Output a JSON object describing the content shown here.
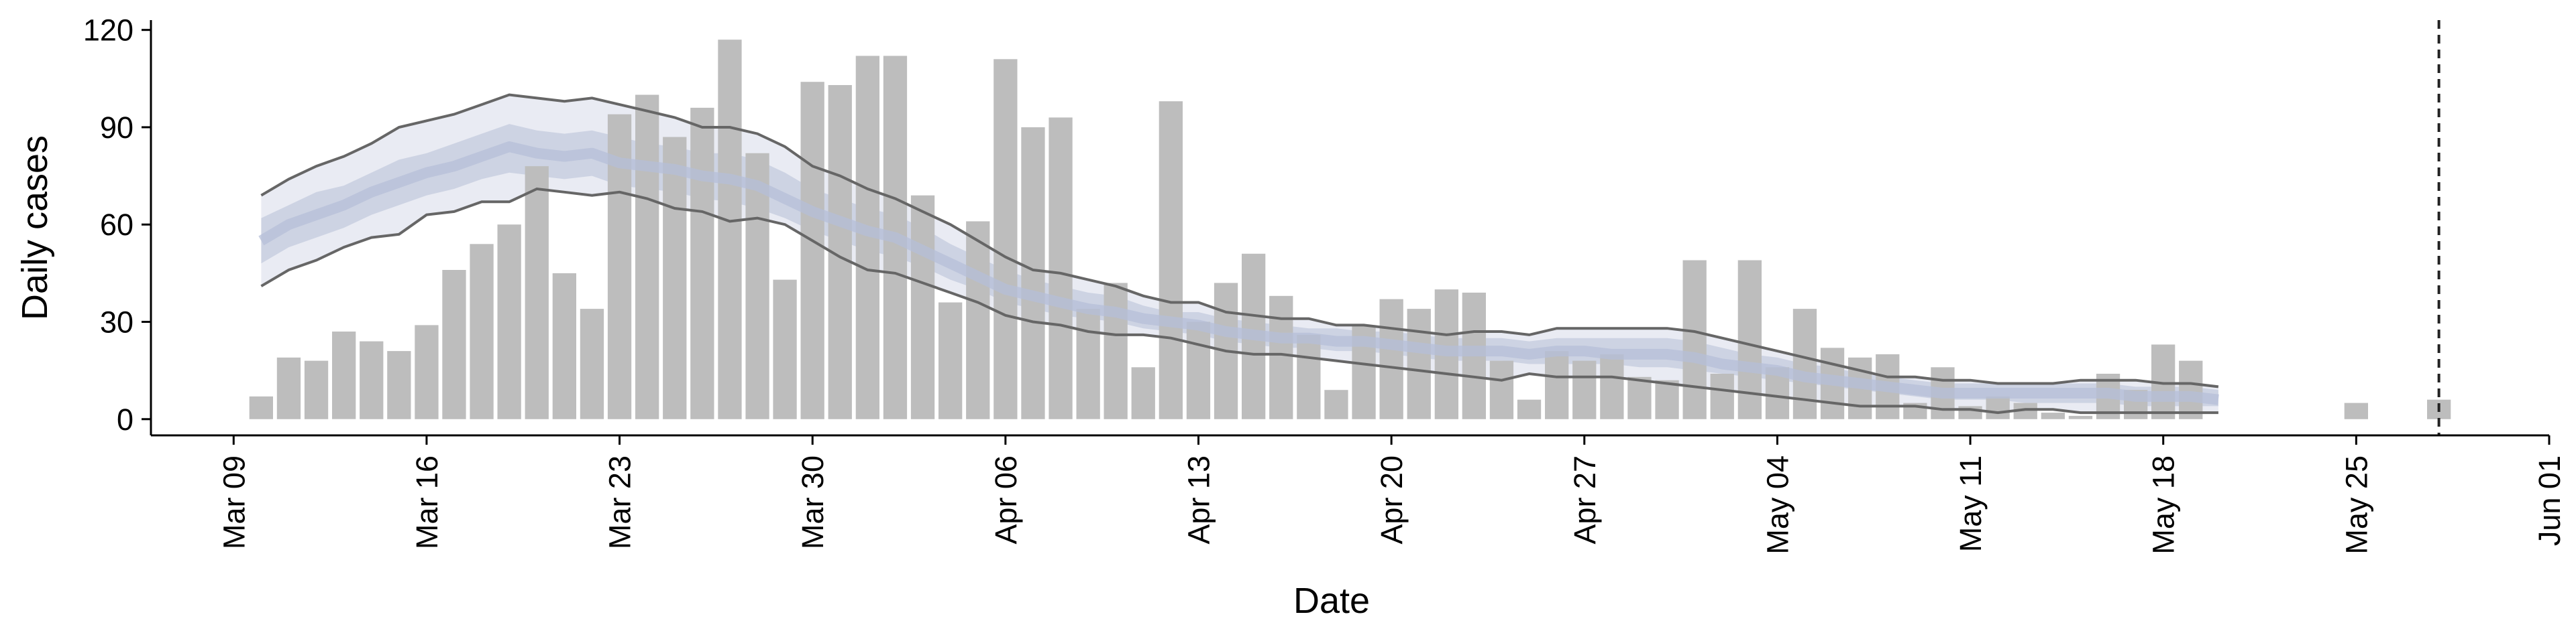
{
  "chart_data": {
    "type": "bar",
    "xlabel": "Date",
    "ylabel": "Daily cases",
    "ylim": [
      -5,
      122
    ],
    "yticks": [
      0,
      30,
      60,
      90,
      120
    ],
    "xlim": [
      "2020-03-06",
      "2020-06-01"
    ],
    "xticks": [
      {
        "date": "2020-03-09",
        "label": "Mar 09"
      },
      {
        "date": "2020-03-16",
        "label": "Mar 16"
      },
      {
        "date": "2020-03-23",
        "label": "Mar 23"
      },
      {
        "date": "2020-03-30",
        "label": "Mar 30"
      },
      {
        "date": "2020-04-06",
        "label": "Apr 06"
      },
      {
        "date": "2020-04-13",
        "label": "Apr 13"
      },
      {
        "date": "2020-04-20",
        "label": "Apr 20"
      },
      {
        "date": "2020-04-27",
        "label": "Apr 27"
      },
      {
        "date": "2020-05-04",
        "label": "May 04"
      },
      {
        "date": "2020-05-11",
        "label": "May 11"
      },
      {
        "date": "2020-05-18",
        "label": "May 18"
      },
      {
        "date": "2020-05-25",
        "label": "May 25"
      },
      {
        "date": "2020-06-01",
        "label": "Jun 01"
      }
    ],
    "grid": false,
    "legend": "none",
    "bars": {
      "dates": [
        "2020-03-10",
        "2020-03-11",
        "2020-03-12",
        "2020-03-13",
        "2020-03-14",
        "2020-03-15",
        "2020-03-16",
        "2020-03-17",
        "2020-03-18",
        "2020-03-19",
        "2020-03-20",
        "2020-03-21",
        "2020-03-22",
        "2020-03-23",
        "2020-03-24",
        "2020-03-25",
        "2020-03-26",
        "2020-03-27",
        "2020-03-28",
        "2020-03-29",
        "2020-03-30",
        "2020-03-31",
        "2020-04-01",
        "2020-04-02",
        "2020-04-03",
        "2020-04-04",
        "2020-04-05",
        "2020-04-06",
        "2020-04-07",
        "2020-04-08",
        "2020-04-09",
        "2020-04-10",
        "2020-04-11",
        "2020-04-12",
        "2020-04-13",
        "2020-04-14",
        "2020-04-15",
        "2020-04-16",
        "2020-04-17",
        "2020-04-18",
        "2020-04-19",
        "2020-04-20",
        "2020-04-21",
        "2020-04-22",
        "2020-04-23",
        "2020-04-24",
        "2020-04-25",
        "2020-04-26",
        "2020-04-27",
        "2020-04-28",
        "2020-04-29",
        "2020-04-30",
        "2020-05-01",
        "2020-05-02",
        "2020-05-03",
        "2020-05-04",
        "2020-05-05",
        "2020-05-06",
        "2020-05-07",
        "2020-05-08",
        "2020-05-09",
        "2020-05-10",
        "2020-05-11",
        "2020-05-12",
        "2020-05-13",
        "2020-05-14",
        "2020-05-15",
        "2020-05-16",
        "2020-05-17",
        "2020-05-18",
        "2020-05-19",
        "2020-05-20",
        "2020-05-21",
        "2020-05-22",
        "2020-05-23",
        "2020-05-24",
        "2020-05-25",
        "2020-05-26",
        "2020-05-27",
        "2020-05-28"
      ],
      "values": [
        7,
        19,
        18,
        27,
        24,
        21,
        29,
        46,
        54,
        60,
        78,
        45,
        34,
        94,
        100,
        87,
        96,
        117,
        82,
        43,
        104,
        103,
        112,
        112,
        69,
        36,
        61,
        111,
        90,
        93,
        34,
        42,
        16,
        98,
        30,
        42,
        51,
        38,
        26,
        9,
        29,
        37,
        34,
        40,
        39,
        18,
        6,
        21,
        18,
        20,
        13,
        12,
        49,
        14,
        49,
        16,
        34,
        22,
        19,
        20,
        5,
        16,
        4,
        7,
        5,
        2,
        1,
        14,
        9,
        23,
        18,
        0,
        0,
        0,
        0,
        0,
        5,
        0,
        0,
        6
      ],
      "color": "#bdbdbd"
    },
    "estimate": {
      "dates": [
        "2020-03-10",
        "2020-03-11",
        "2020-03-12",
        "2020-03-13",
        "2020-03-14",
        "2020-03-15",
        "2020-03-16",
        "2020-03-17",
        "2020-03-18",
        "2020-03-19",
        "2020-03-20",
        "2020-03-21",
        "2020-03-22",
        "2020-03-23",
        "2020-03-24",
        "2020-03-25",
        "2020-03-26",
        "2020-03-27",
        "2020-03-28",
        "2020-03-29",
        "2020-03-30",
        "2020-03-31",
        "2020-04-01",
        "2020-04-02",
        "2020-04-03",
        "2020-04-04",
        "2020-04-05",
        "2020-04-06",
        "2020-04-07",
        "2020-04-08",
        "2020-04-09",
        "2020-04-10",
        "2020-04-11",
        "2020-04-12",
        "2020-04-13",
        "2020-04-14",
        "2020-04-15",
        "2020-04-16",
        "2020-04-17",
        "2020-04-18",
        "2020-04-19",
        "2020-04-20",
        "2020-04-21",
        "2020-04-22",
        "2020-04-23",
        "2020-04-24",
        "2020-04-25",
        "2020-04-26",
        "2020-04-27",
        "2020-04-28",
        "2020-04-29",
        "2020-04-30",
        "2020-05-01",
        "2020-05-02",
        "2020-05-03",
        "2020-05-04",
        "2020-05-05",
        "2020-05-06",
        "2020-05-07",
        "2020-05-08",
        "2020-05-09",
        "2020-05-10",
        "2020-05-11",
        "2020-05-12",
        "2020-05-13",
        "2020-05-14",
        "2020-05-15",
        "2020-05-16",
        "2020-05-17",
        "2020-05-18",
        "2020-05-19",
        "2020-05-20"
      ],
      "upper90": [
        69,
        74,
        78,
        81,
        85,
        90,
        92,
        94,
        97,
        100,
        99,
        98,
        99,
        97,
        95,
        93,
        90,
        90,
        88,
        84,
        78,
        75,
        71,
        68,
        64,
        60,
        55,
        50,
        46,
        45,
        43,
        41,
        38,
        36,
        36,
        33,
        32,
        31,
        31,
        29,
        29,
        28,
        27,
        26,
        27,
        27,
        26,
        28,
        28,
        28,
        28,
        28,
        27,
        25,
        23,
        21,
        19,
        17,
        15,
        13,
        13,
        12,
        12,
        11,
        11,
        11,
        12,
        12,
        12,
        11,
        11,
        10
      ],
      "upper50": [
        62,
        66,
        70,
        72,
        76,
        80,
        82,
        85,
        88,
        91,
        89,
        88,
        89,
        87,
        85,
        84,
        82,
        82,
        80,
        76,
        71,
        68,
        65,
        63,
        59,
        54,
        50,
        46,
        43,
        41,
        39,
        38,
        35,
        33,
        33,
        31,
        30,
        29,
        28,
        28,
        27,
        27,
        26,
        25,
        25,
        25,
        24,
        25,
        25,
        25,
        25,
        25,
        24,
        22,
        20,
        19,
        17,
        16,
        14,
        13,
        12,
        11,
        11,
        11,
        11,
        11,
        11,
        11,
        10,
        10,
        10,
        9
      ],
      "median": [
        55,
        60,
        63,
        66,
        70,
        73,
        76,
        78,
        81,
        84,
        82,
        81,
        82,
        79,
        78,
        77,
        75,
        74,
        72,
        68,
        64,
        61,
        58,
        56,
        52,
        48,
        44,
        40,
        38,
        36,
        34,
        33,
        31,
        30,
        29,
        27,
        26,
        25,
        25,
        24,
        24,
        23,
        22,
        21,
        21,
        21,
        20,
        21,
        21,
        20,
        20,
        20,
        19,
        17,
        16,
        15,
        13,
        12,
        11,
        10,
        9,
        8,
        8,
        8,
        8,
        8,
        8,
        8,
        7,
        7,
        7,
        6
      ],
      "lower50": [
        48,
        53,
        56,
        59,
        63,
        66,
        69,
        71,
        74,
        76,
        75,
        74,
        75,
        72,
        71,
        70,
        68,
        67,
        65,
        62,
        58,
        55,
        52,
        50,
        47,
        43,
        40,
        36,
        34,
        32,
        31,
        30,
        28,
        27,
        26,
        24,
        23,
        22,
        22,
        21,
        21,
        20,
        19,
        18,
        18,
        18,
        17,
        17,
        17,
        17,
        16,
        16,
        15,
        14,
        13,
        12,
        11,
        10,
        9,
        8,
        7,
        6,
        6,
        6,
        5,
        5,
        5,
        5,
        4,
        4,
        4,
        4
      ],
      "lower90": [
        41,
        46,
        49,
        53,
        56,
        57,
        63,
        64,
        67,
        67,
        71,
        70,
        69,
        70,
        68,
        65,
        64,
        61,
        62,
        60,
        55,
        50,
        46,
        45,
        42,
        39,
        36,
        32,
        30,
        29,
        27,
        26,
        26,
        25,
        23,
        21,
        20,
        20,
        19,
        18,
        17,
        16,
        15,
        14,
        13,
        12,
        14,
        13,
        13,
        13,
        12,
        11,
        10,
        9,
        8,
        7,
        6,
        5,
        4,
        4,
        4,
        3,
        3,
        2,
        3,
        3,
        2,
        2,
        2,
        2,
        2,
        2
      ],
      "band90_color": "#e9ebf3",
      "band50_color": "#cdd3e3",
      "median_color": "#b6bfd8",
      "bound_line_color": "#666666"
    },
    "vline_date": "2020-05-28"
  }
}
